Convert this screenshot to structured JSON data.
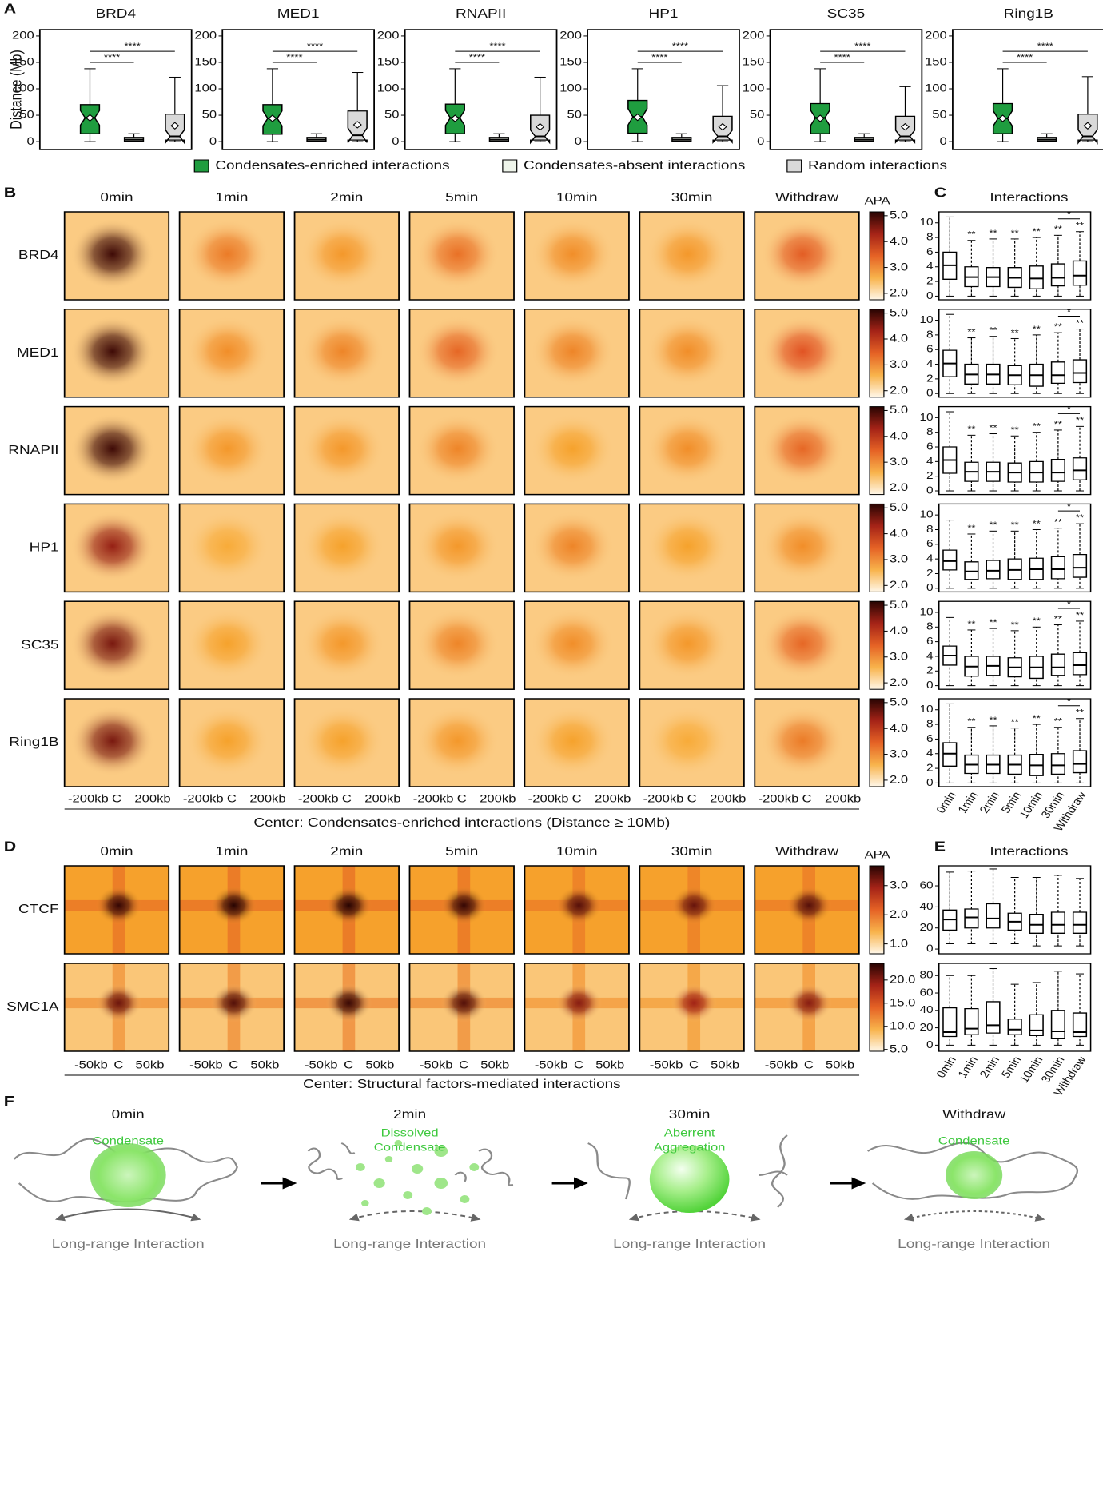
{
  "panel_a": {
    "type": "box",
    "label": "A",
    "ylabel": "Distance (Mb)",
    "ylim": [
      -15,
      212
    ],
    "yticks": [
      0,
      50,
      100,
      150,
      200
    ],
    "sig": [
      "****",
      "****"
    ],
    "legend": [
      {
        "name": "Condensates-enriched interactions",
        "color": "#1f9d3f"
      },
      {
        "name": "Condensates-absent interactions",
        "color": "#eef4ea"
      },
      {
        "name": "Random interactions",
        "color": "#d9d9d9"
      }
    ],
    "panels": [
      {
        "title": "BRD4",
        "boxes": [
          [
            0,
            15,
            45,
            70,
            138
          ],
          [
            0,
            1,
            4,
            8,
            15
          ],
          [
            0,
            3,
            10,
            52,
            122
          ]
        ],
        "means": [
          45,
          null,
          30
        ]
      },
      {
        "title": "MED1",
        "boxes": [
          [
            0,
            14,
            44,
            70,
            138
          ],
          [
            0,
            1,
            4,
            8,
            15
          ],
          [
            0,
            3,
            12,
            58,
            131
          ]
        ],
        "means": [
          44,
          null,
          32
        ]
      },
      {
        "title": "RNAPII",
        "boxes": [
          [
            0,
            15,
            45,
            71,
            138
          ],
          [
            0,
            1,
            4,
            8,
            15
          ],
          [
            0,
            3,
            10,
            50,
            122
          ]
        ],
        "means": [
          44,
          null,
          28
        ]
      },
      {
        "title": "HP1",
        "boxes": [
          [
            0,
            16,
            47,
            78,
            138
          ],
          [
            0,
            1,
            4,
            8,
            15
          ],
          [
            0,
            3,
            10,
            48,
            106
          ]
        ],
        "means": [
          46,
          null,
          28
        ]
      },
      {
        "title": "SC35",
        "boxes": [
          [
            0,
            15,
            45,
            72,
            138
          ],
          [
            0,
            1,
            4,
            8,
            15
          ],
          [
            0,
            3,
            10,
            48,
            104
          ]
        ],
        "means": [
          44,
          null,
          28
        ]
      },
      {
        "title": "Ring1B",
        "boxes": [
          [
            0,
            15,
            44,
            72,
            138
          ],
          [
            0,
            1,
            4,
            8,
            15
          ],
          [
            0,
            3,
            10,
            52,
            123
          ]
        ],
        "means": [
          44,
          null,
          30
        ]
      }
    ]
  },
  "panel_b": {
    "type": "heatmap",
    "label": "B",
    "columns": [
      "0min",
      "1min",
      "2min",
      "5min",
      "10min",
      "30min",
      "Withdraw"
    ],
    "rows": [
      "BRD4",
      "MED1",
      "RNAPII",
      "HP1",
      "SC35",
      "Ring1B"
    ],
    "cbar_label": "APA",
    "clim": [
      1.75,
      5.15
    ],
    "cticks": [
      {
        "value": 2,
        "label": "2.0"
      },
      {
        "value": 3,
        "label": "3.0"
      },
      {
        "value": 4,
        "label": "4.0"
      },
      {
        "value": 5,
        "label": "5.0"
      }
    ],
    "background": 2.3,
    "peaks": [
      [
        5.0,
        3.2,
        2.9,
        3.3,
        3.0,
        2.9,
        3.5
      ],
      [
        5.0,
        3.0,
        3.1,
        3.4,
        3.1,
        3.0,
        3.6
      ],
      [
        5.0,
        2.9,
        2.9,
        3.1,
        2.8,
        3.0,
        3.4
      ],
      [
        4.4,
        2.7,
        2.8,
        2.9,
        3.1,
        2.8,
        3.0
      ],
      [
        4.6,
        2.8,
        2.9,
        3.1,
        3.0,
        2.9,
        3.4
      ],
      [
        4.6,
        2.8,
        2.8,
        2.9,
        2.8,
        2.7,
        3.2
      ]
    ],
    "xticks": [
      "-200kb",
      "C",
      "200kb"
    ],
    "footer": "Center: Condensates-enriched interactions (Distance ≥ 10Mb)"
  },
  "panel_c": {
    "type": "box",
    "label": "C",
    "title": "Interactions",
    "ylim": [
      -0.5,
      11.5
    ],
    "yticks": [
      0,
      2,
      4,
      6,
      8,
      10
    ],
    "stars": "**",
    "bracket": "*",
    "panels": [
      [
        [
          0,
          2.3,
          4.2,
          6.0,
          10.8
        ],
        [
          0,
          1.3,
          2.6,
          4.0,
          7.6
        ],
        [
          0,
          1.3,
          2.6,
          3.9,
          7.8
        ],
        [
          0,
          1.2,
          2.5,
          3.9,
          7.8
        ],
        [
          0,
          1.0,
          2.4,
          4.1,
          8.0
        ],
        [
          0,
          1.4,
          2.5,
          4.4,
          8.3
        ],
        [
          0,
          1.5,
          2.8,
          4.8,
          8.8
        ]
      ],
      [
        [
          0,
          2.3,
          4.1,
          5.9,
          10.8
        ],
        [
          0,
          1.3,
          2.6,
          4.0,
          7.6
        ],
        [
          0,
          1.3,
          2.6,
          4.0,
          7.8
        ],
        [
          0,
          1.2,
          2.5,
          3.8,
          7.5
        ],
        [
          0,
          1.0,
          2.5,
          4.0,
          8.0
        ],
        [
          0,
          1.4,
          2.5,
          4.3,
          8.3
        ],
        [
          0,
          1.5,
          2.8,
          4.6,
          8.8
        ]
      ],
      [
        [
          0,
          2.4,
          4.2,
          6.0,
          10.8
        ],
        [
          0,
          1.3,
          2.6,
          3.9,
          7.6
        ],
        [
          0,
          1.3,
          2.6,
          3.9,
          7.8
        ],
        [
          0,
          1.2,
          2.5,
          3.8,
          7.5
        ],
        [
          0,
          1.2,
          2.5,
          4.0,
          8.0
        ],
        [
          0,
          1.3,
          2.5,
          4.3,
          8.3
        ],
        [
          0,
          1.5,
          2.8,
          4.5,
          8.8
        ]
      ],
      [
        [
          0,
          2.5,
          3.7,
          5.2,
          9.3
        ],
        [
          0,
          1.2,
          2.3,
          3.6,
          7.4
        ],
        [
          0,
          1.3,
          2.4,
          3.8,
          7.8
        ],
        [
          0,
          1.2,
          2.5,
          4.0,
          7.8
        ],
        [
          0,
          1.2,
          2.6,
          4.1,
          8.0
        ],
        [
          0,
          1.3,
          2.6,
          4.3,
          8.2
        ],
        [
          0,
          1.5,
          2.8,
          4.6,
          8.8
        ]
      ],
      [
        [
          0,
          2.8,
          4.1,
          5.4,
          9.3
        ],
        [
          0,
          1.3,
          2.6,
          4.0,
          7.6
        ],
        [
          0,
          1.4,
          2.7,
          4.0,
          7.8
        ],
        [
          0,
          1.2,
          2.5,
          3.8,
          7.5
        ],
        [
          0,
          1.0,
          2.5,
          4.0,
          8.0
        ],
        [
          0,
          1.4,
          2.5,
          4.3,
          8.3
        ],
        [
          0,
          1.5,
          2.8,
          4.5,
          8.8
        ]
      ],
      [
        [
          0,
          2.3,
          4.0,
          5.5,
          10.8
        ],
        [
          0,
          1.3,
          2.5,
          3.8,
          7.6
        ],
        [
          0,
          1.3,
          2.5,
          3.8,
          7.8
        ],
        [
          0,
          1.2,
          2.5,
          3.8,
          7.5
        ],
        [
          0,
          1.0,
          2.4,
          3.9,
          8.0
        ],
        [
          0,
          1.2,
          2.4,
          4.0,
          7.6
        ],
        [
          0,
          1.4,
          2.6,
          4.4,
          8.8
        ]
      ]
    ]
  },
  "panel_d": {
    "type": "heatmap",
    "label": "D",
    "rows": [
      "CTCF",
      "SMC1A"
    ],
    "cbar_label": "APA",
    "colorbars": [
      {
        "clim": [
          0.66,
          3.68
        ],
        "cticks": [
          {
            "value": 1,
            "label": "1.0"
          },
          {
            "value": 2,
            "label": "2.0"
          },
          {
            "value": 3,
            "label": "3.0"
          }
        ]
      },
      {
        "clim": [
          4.6,
          23.6
        ],
        "cticks": [
          {
            "value": 5,
            "label": "5.0"
          },
          {
            "value": 10,
            "label": "10.0"
          },
          {
            "value": 15,
            "label": "15.0"
          },
          {
            "value": 20,
            "label": "20.0"
          }
        ]
      }
    ],
    "background": [
      1.6,
      8
    ],
    "peaks": [
      [
        3.6,
        3.7,
        3.7,
        3.6,
        3.4,
        3.3,
        3.4
      ],
      [
        21,
        22,
        23,
        22,
        20,
        19,
        20
      ]
    ],
    "xticks": [
      "-50kb",
      "C",
      "50kb"
    ],
    "footer": "Center: Structural factors-mediated interactions"
  },
  "panel_e": {
    "type": "box",
    "label": "E",
    "title": "Interactions",
    "panels": [
      {
        "ylim": [
          -4.5,
          79
        ],
        "yticks": [
          0,
          20,
          40,
          60
        ],
        "boxes": [
          [
            5,
            18,
            28,
            37,
            73
          ],
          [
            5,
            20,
            30,
            38,
            74
          ],
          [
            5,
            20,
            29,
            43,
            76
          ],
          [
            5,
            18,
            26,
            34,
            68
          ],
          [
            3,
            15,
            23,
            33,
            68
          ],
          [
            3,
            15,
            23,
            35,
            70
          ],
          [
            3,
            15,
            23,
            35,
            67
          ]
        ]
      },
      {
        "ylim": [
          -7,
          94
        ],
        "yticks": [
          0,
          20,
          40,
          60,
          80
        ],
        "boxes": [
          [
            0,
            10,
            15,
            43,
            80
          ],
          [
            0,
            12,
            19,
            42,
            80
          ],
          [
            0,
            14,
            23,
            50,
            88
          ],
          [
            0,
            12,
            18,
            30,
            70
          ],
          [
            0,
            11,
            17,
            35,
            72
          ],
          [
            0,
            8,
            16,
            40,
            85
          ],
          [
            0,
            10,
            15,
            37,
            82
          ]
        ]
      }
    ]
  },
  "panel_f": {
    "type": "diagram",
    "label": "F",
    "caption": "Long-range Interaction",
    "stages": [
      {
        "title": "0min",
        "note": [
          "Condensate"
        ]
      },
      {
        "title": "2min",
        "note": [
          "Dissolved",
          "Condensate"
        ]
      },
      {
        "title": "30min",
        "note": [
          "Aberrent",
          "Aggregation"
        ]
      },
      {
        "title": "Withdraw",
        "note": [
          "Condensate"
        ]
      }
    ]
  }
}
